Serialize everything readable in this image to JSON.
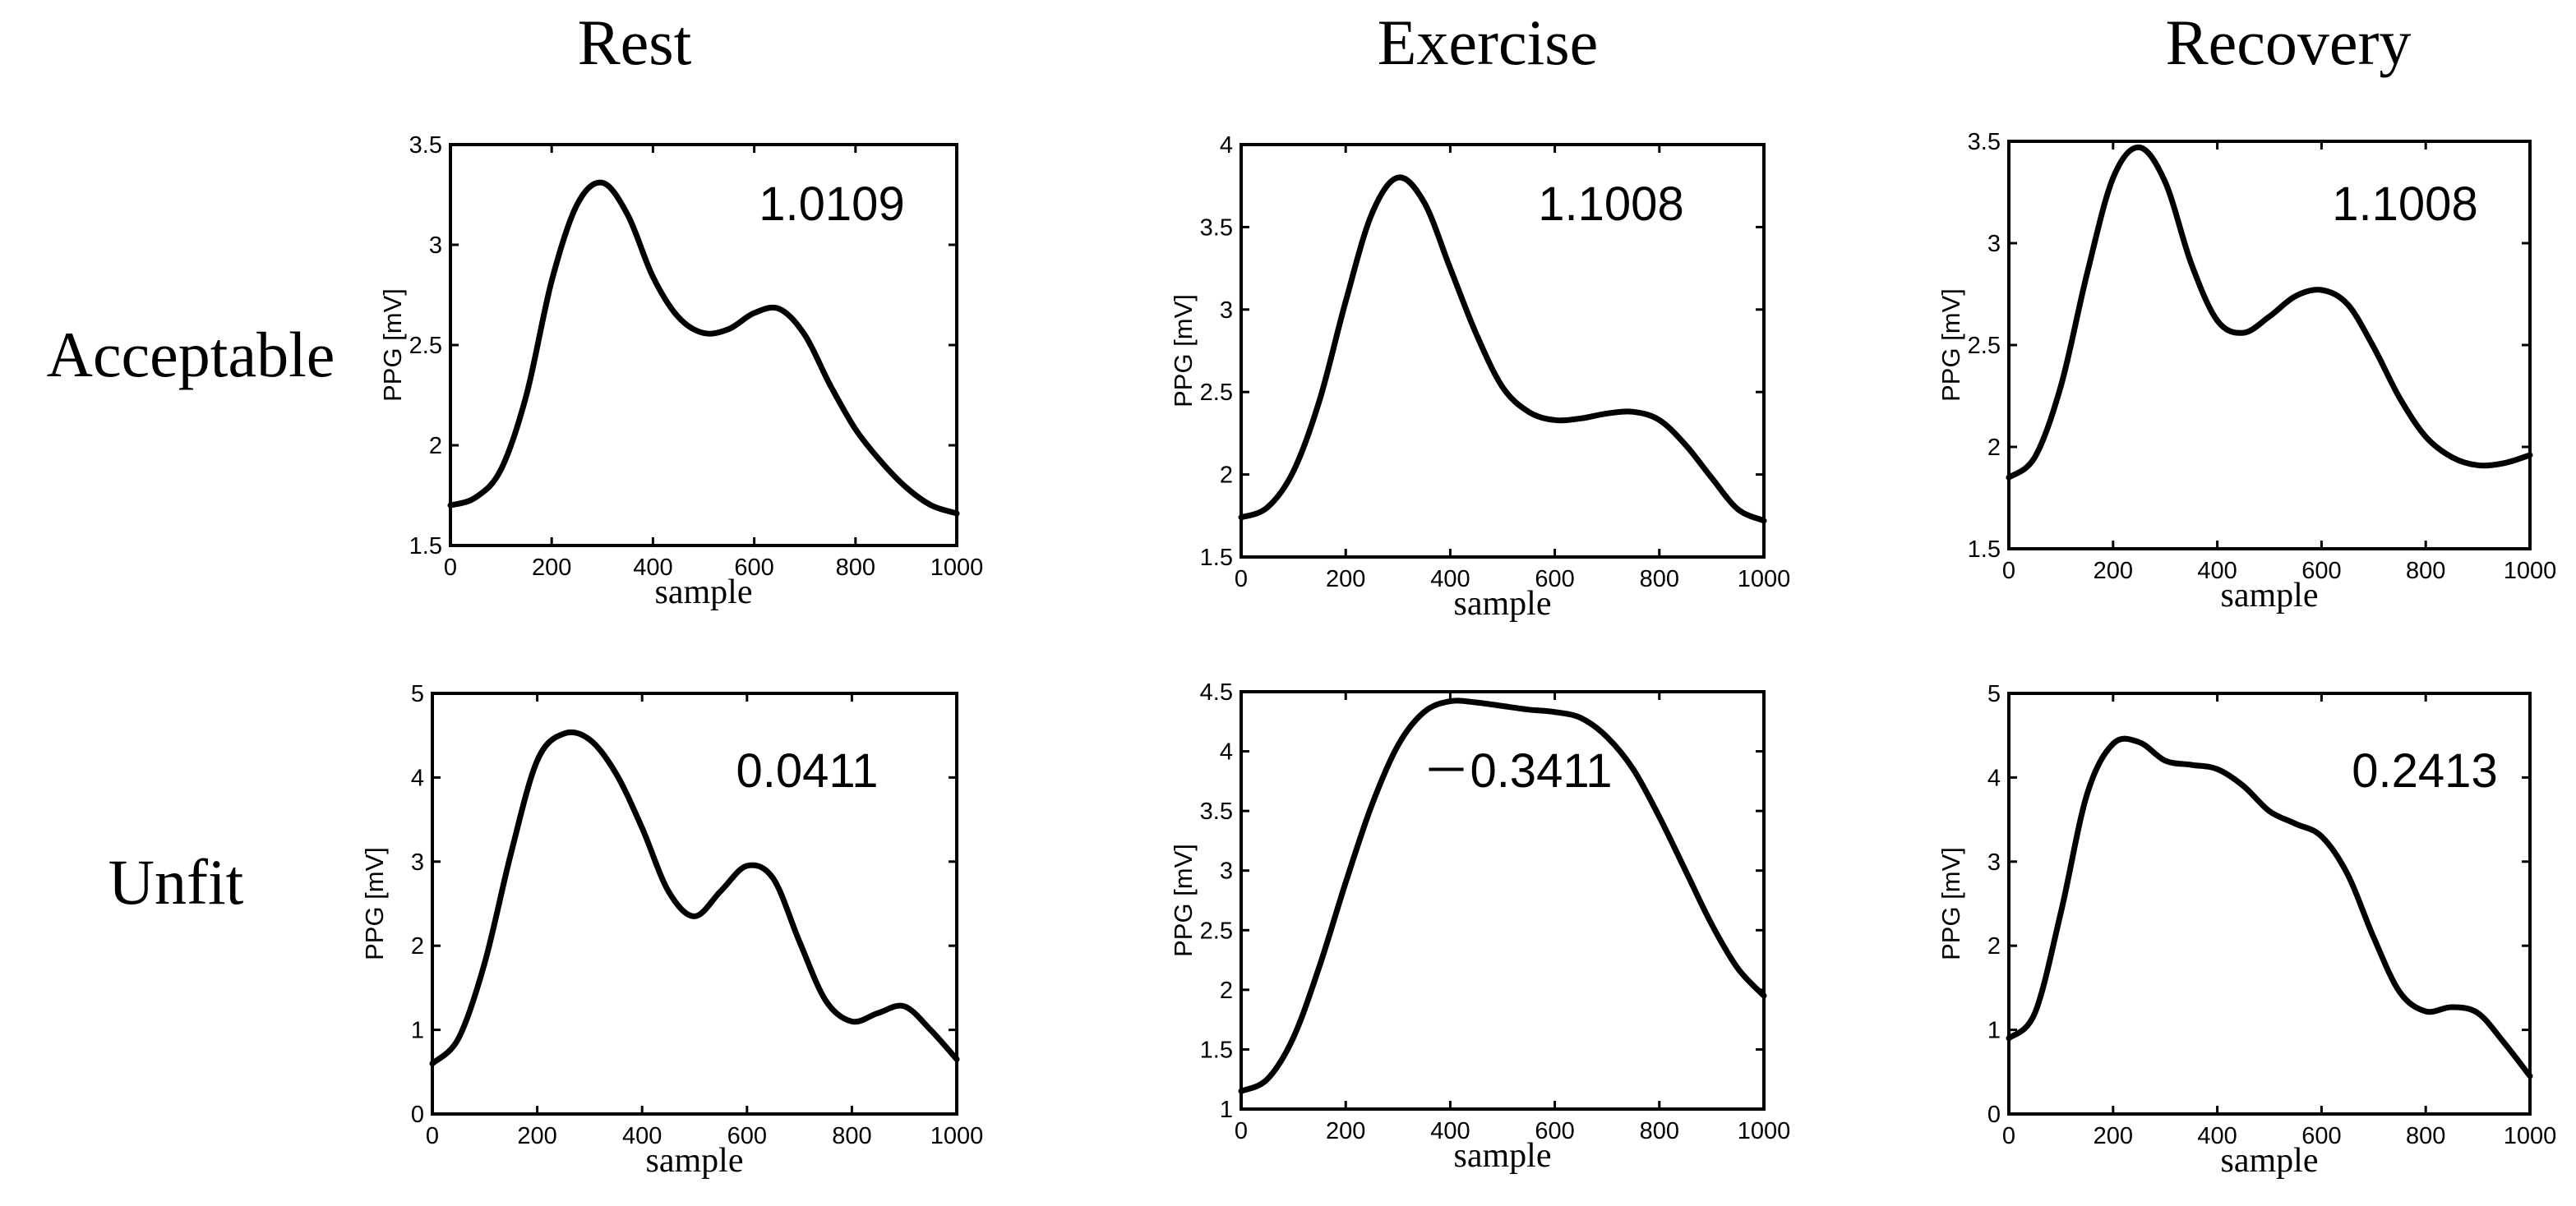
{
  "column_titles": [
    "Rest",
    "Exercise",
    "Recovery"
  ],
  "row_titles": [
    "Acceptable",
    "Unfit"
  ],
  "chart_data": [
    {
      "type": "line",
      "row": "Acceptable",
      "column": "Rest",
      "title": "",
      "xlabel": "sample",
      "ylabel": "PPG [mV]",
      "xlim": [
        0,
        1000
      ],
      "ylim": [
        1.5,
        3.5
      ],
      "xticks": [
        0,
        200,
        400,
        600,
        800,
        1000
      ],
      "xtick_labels": [
        "0",
        "200",
        "400",
        "600",
        "800",
        "1000"
      ],
      "yticks": [
        1.5,
        2,
        2.5,
        3,
        3.5
      ],
      "ytick_labels": [
        "1.5",
        "2",
        "2.5",
        "3",
        "3.5"
      ],
      "annotation": "1.0109",
      "series": [
        {
          "name": "PPG",
          "x": [
            0,
            50,
            100,
            150,
            200,
            250,
            300,
            350,
            400,
            450,
            500,
            550,
            600,
            650,
            700,
            750,
            800,
            850,
            900,
            950,
            1000
          ],
          "y": [
            1.7,
            1.74,
            1.88,
            2.25,
            2.82,
            3.2,
            3.31,
            3.15,
            2.84,
            2.64,
            2.56,
            2.58,
            2.66,
            2.68,
            2.55,
            2.3,
            2.08,
            1.92,
            1.79,
            1.7,
            1.66
          ]
        }
      ]
    },
    {
      "type": "line",
      "row": "Acceptable",
      "column": "Exercise",
      "title": "",
      "xlabel": "sample",
      "ylabel": "PPG [mV]",
      "xlim": [
        0,
        1000
      ],
      "ylim": [
        1.5,
        4
      ],
      "xticks": [
        0,
        200,
        400,
        600,
        800,
        1000
      ],
      "xtick_labels": [
        "0",
        "200",
        "400",
        "600",
        "800",
        "1000"
      ],
      "yticks": [
        1.5,
        2,
        2.5,
        3,
        3.5,
        4
      ],
      "ytick_labels": [
        "1.5",
        "2",
        "2.5",
        "3",
        "3.5",
        "4"
      ],
      "annotation": "1.1008",
      "series": [
        {
          "name": "PPG",
          "x": [
            0,
            50,
            100,
            150,
            200,
            250,
            300,
            350,
            400,
            450,
            500,
            550,
            600,
            650,
            700,
            750,
            800,
            850,
            900,
            950,
            1000
          ],
          "y": [
            1.74,
            1.8,
            2.02,
            2.45,
            3.05,
            3.58,
            3.8,
            3.65,
            3.25,
            2.85,
            2.53,
            2.38,
            2.33,
            2.34,
            2.37,
            2.38,
            2.33,
            2.18,
            1.98,
            1.79,
            1.72
          ]
        }
      ]
    },
    {
      "type": "line",
      "row": "Acceptable",
      "column": "Recovery",
      "title": "",
      "xlabel": "sample",
      "ylabel": "PPG [mV]",
      "xlim": [
        0,
        1000
      ],
      "ylim": [
        1.5,
        3.5
      ],
      "xticks": [
        0,
        200,
        400,
        600,
        800,
        1000
      ],
      "xtick_labels": [
        "0",
        "200",
        "400",
        "600",
        "800",
        "1000"
      ],
      "yticks": [
        1.5,
        2,
        2.5,
        3,
        3.5
      ],
      "ytick_labels": [
        "1.5",
        "2",
        "2.5",
        "3",
        "3.5"
      ],
      "annotation": "1.1008",
      "series": [
        {
          "name": "PPG",
          "x": [
            0,
            50,
            100,
            150,
            200,
            250,
            300,
            350,
            400,
            450,
            500,
            550,
            600,
            650,
            700,
            750,
            800,
            850,
            900,
            950,
            1000
          ],
          "y": [
            1.85,
            1.95,
            2.3,
            2.85,
            3.32,
            3.47,
            3.3,
            2.9,
            2.62,
            2.56,
            2.64,
            2.74,
            2.77,
            2.7,
            2.49,
            2.24,
            2.05,
            1.95,
            1.91,
            1.92,
            1.96
          ]
        }
      ]
    },
    {
      "type": "line",
      "row": "Unfit",
      "column": "Rest",
      "title": "",
      "xlabel": "sample",
      "ylabel": "PPG [mV]",
      "xlim": [
        0,
        1000
      ],
      "ylim": [
        0,
        5
      ],
      "xticks": [
        0,
        200,
        400,
        600,
        800,
        1000
      ],
      "xtick_labels": [
        "0",
        "200",
        "400",
        "600",
        "800",
        "1000"
      ],
      "yticks": [
        0,
        1,
        2,
        3,
        4,
        5
      ],
      "ytick_labels": [
        "0",
        "1",
        "2",
        "3",
        "4",
        "5"
      ],
      "annotation": "0.0411",
      "series": [
        {
          "name": "PPG",
          "x": [
            0,
            50,
            100,
            150,
            200,
            250,
            300,
            350,
            400,
            450,
            500,
            550,
            600,
            650,
            700,
            750,
            800,
            850,
            900,
            950,
            1000
          ],
          "y": [
            0.6,
            0.9,
            1.8,
            3.1,
            4.2,
            4.52,
            4.45,
            4.05,
            3.4,
            2.65,
            2.35,
            2.65,
            2.95,
            2.8,
            2.05,
            1.35,
            1.1,
            1.2,
            1.28,
            1.0,
            0.65
          ]
        }
      ]
    },
    {
      "type": "line",
      "row": "Unfit",
      "column": "Exercise",
      "title": "",
      "xlabel": "sample",
      "ylabel": "PPG [mV]",
      "xlim": [
        0,
        1000
      ],
      "ylim": [
        1,
        4.5
      ],
      "xticks": [
        0,
        200,
        400,
        600,
        800,
        1000
      ],
      "xtick_labels": [
        "0",
        "200",
        "400",
        "600",
        "800",
        "1000"
      ],
      "yticks": [
        1,
        1.5,
        2,
        2.5,
        3,
        3.5,
        4,
        4.5
      ],
      "ytick_labels": [
        "1",
        "1.5",
        "2",
        "2.5",
        "3",
        "3.5",
        "4",
        "4.5"
      ],
      "annotation": "－0.3411",
      "series": [
        {
          "name": "PPG",
          "x": [
            0,
            50,
            100,
            150,
            200,
            250,
            300,
            350,
            400,
            450,
            500,
            550,
            600,
            650,
            700,
            750,
            800,
            850,
            900,
            950,
            1000
          ],
          "y": [
            1.15,
            1.25,
            1.6,
            2.2,
            2.9,
            3.55,
            4.05,
            4.33,
            4.42,
            4.41,
            4.38,
            4.35,
            4.33,
            4.28,
            4.12,
            3.85,
            3.45,
            3.0,
            2.55,
            2.18,
            1.95
          ]
        }
      ]
    },
    {
      "type": "line",
      "row": "Unfit",
      "column": "Recovery",
      "title": "",
      "xlabel": "sample",
      "ylabel": "PPG [mV]",
      "xlim": [
        0,
        1000
      ],
      "ylim": [
        0,
        5
      ],
      "xticks": [
        0,
        200,
        400,
        600,
        800,
        1000
      ],
      "xtick_labels": [
        "0",
        "200",
        "400",
        "600",
        "800",
        "1000"
      ],
      "yticks": [
        0,
        1,
        2,
        3,
        4,
        5
      ],
      "ytick_labels": [
        "0",
        "1",
        "2",
        "3",
        "4",
        "5"
      ],
      "annotation": "0.2413",
      "series": [
        {
          "name": "PPG",
          "x": [
            0,
            50,
            100,
            150,
            200,
            250,
            300,
            350,
            400,
            450,
            500,
            550,
            600,
            650,
            700,
            750,
            800,
            850,
            900,
            950,
            1000
          ],
          "y": [
            0.9,
            1.2,
            2.4,
            3.8,
            4.4,
            4.42,
            4.2,
            4.15,
            4.1,
            3.9,
            3.6,
            3.45,
            3.3,
            2.85,
            2.1,
            1.45,
            1.22,
            1.27,
            1.2,
            0.85,
            0.45
          ]
        }
      ]
    }
  ]
}
